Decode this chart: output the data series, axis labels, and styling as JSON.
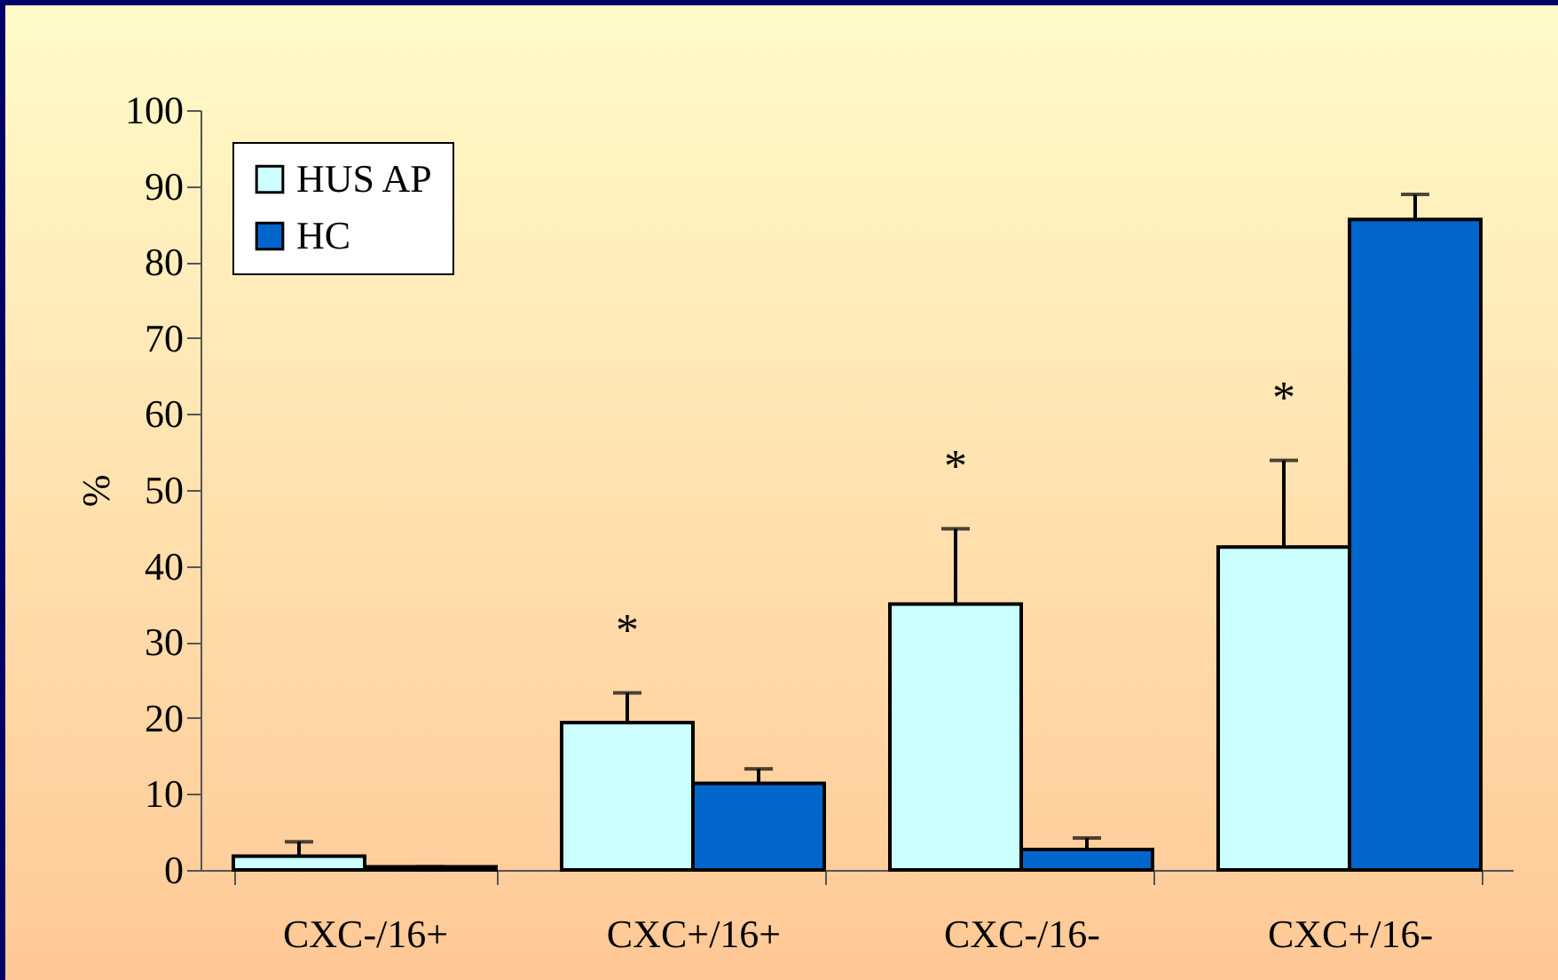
{
  "chart_data": {
    "type": "bar",
    "ylabel": "%",
    "categories": [
      "CXC-/16+",
      "CXC+/16+",
      "CXC-/16-",
      "CXC+/16-"
    ],
    "series": [
      {
        "name": "HUS AP",
        "color": "#ccffff",
        "values": [
          1.8,
          19.4,
          35.0,
          42.5
        ],
        "errors": [
          [
            1.8,
            3.7
          ],
          [
            19.4,
            23.3
          ],
          [
            35.0,
            44.9
          ],
          [
            42.5,
            53.9
          ]
        ]
      },
      {
        "name": "HC",
        "color": "#0066cc",
        "values": [
          0.4,
          11.4,
          2.7,
          85.6
        ],
        "errors": [
          [
            0.4,
            0.4
          ],
          [
            11.4,
            13.3
          ],
          [
            2.7,
            4.2
          ],
          [
            85.6,
            88.9
          ]
        ]
      }
    ],
    "ylim": [
      0,
      100
    ],
    "yticks": [
      0,
      10,
      20,
      30,
      40,
      50,
      60,
      70,
      80,
      90,
      100
    ],
    "grid": false,
    "legend": "top left",
    "annotations": [
      "*",
      "*",
      "*"
    ]
  }
}
